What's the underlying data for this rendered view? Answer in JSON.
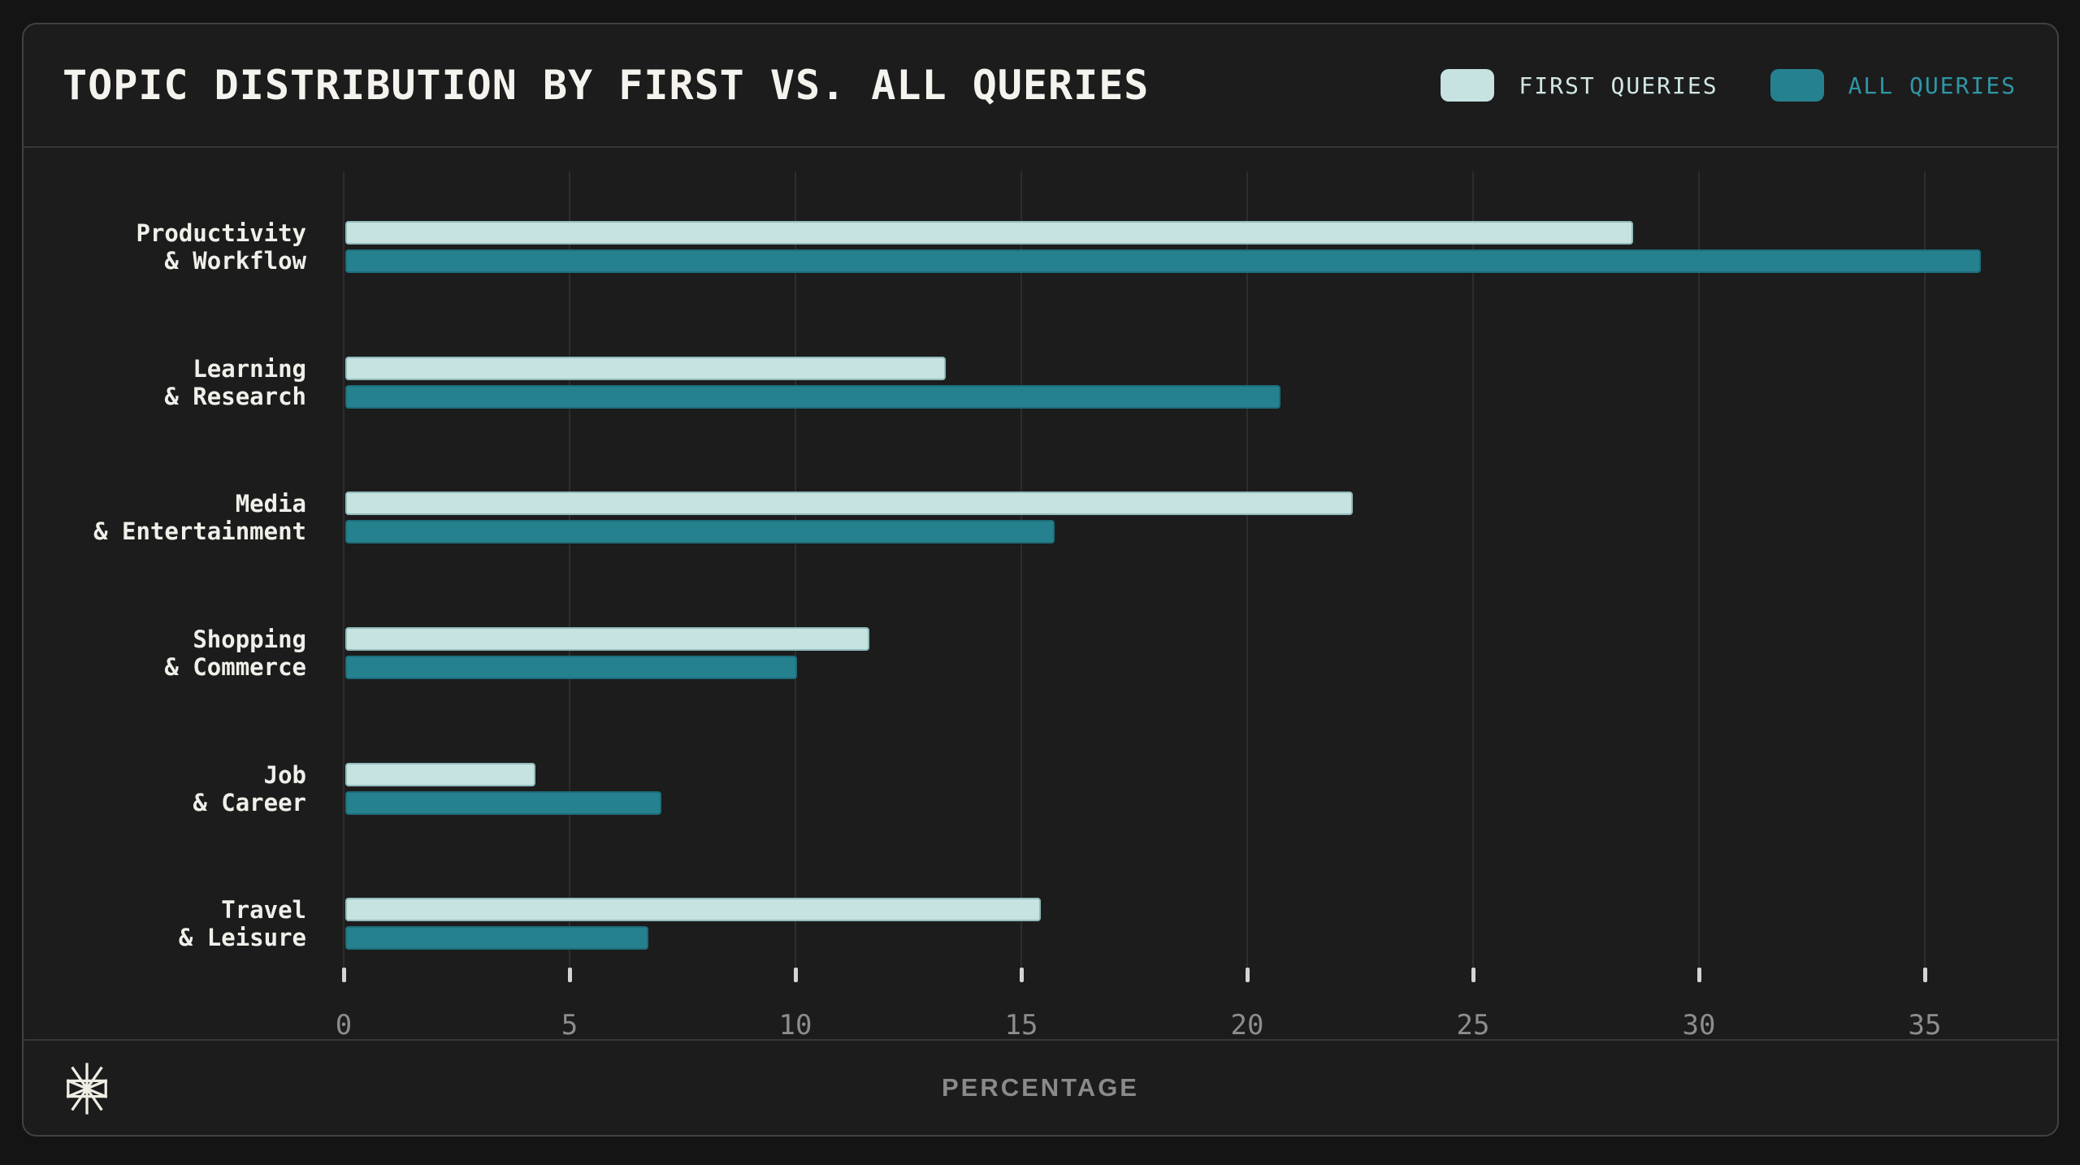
{
  "header": {
    "title": "TOPIC DISTRIBUTION BY FIRST VS. ALL QUERIES"
  },
  "chart_data": {
    "type": "bar",
    "orientation": "horizontal",
    "title": "TOPIC DISTRIBUTION BY FIRST VS. ALL QUERIES",
    "categories": [
      [
        "Productivity",
        "& Workflow"
      ],
      [
        "Learning",
        "& Research"
      ],
      [
        "Media",
        "& Entertainment"
      ],
      [
        "Shopping",
        "& Commerce"
      ],
      [
        "Job",
        "& Career"
      ],
      [
        "Travel",
        "& Leisure"
      ]
    ],
    "series": [
      {
        "name": "FIRST QUERIES",
        "color": "#c6e2e1",
        "label_color": "#d2e7e6",
        "values": [
          28.5,
          13.3,
          22.3,
          11.6,
          4.2,
          15.4
        ]
      },
      {
        "name": "ALL QUERIES",
        "color": "#26818f",
        "label_color": "#2f96a6",
        "values": [
          36.2,
          20.7,
          15.7,
          10.0,
          7.0,
          6.7
        ]
      }
    ],
    "xlabel": "PERCENTAGE",
    "xticks": [
      0,
      5,
      10,
      15,
      20,
      25,
      30,
      35
    ],
    "xlim": [
      0,
      37.2
    ],
    "grid": "vertical-only",
    "legend_position": "top-right",
    "colors": {
      "page_background": "#141414",
      "card_background": "#1c1c1c",
      "card_border": "#414141",
      "gridline": "#2d2d2d",
      "tick_mark": "#d4d4d4",
      "tick_label": "#8d8d8d",
      "title_text": "#f5f3ed",
      "category_text": "#f0efe9",
      "axis_label_text": "#8a8a8a",
      "logo": "#efece3"
    }
  }
}
